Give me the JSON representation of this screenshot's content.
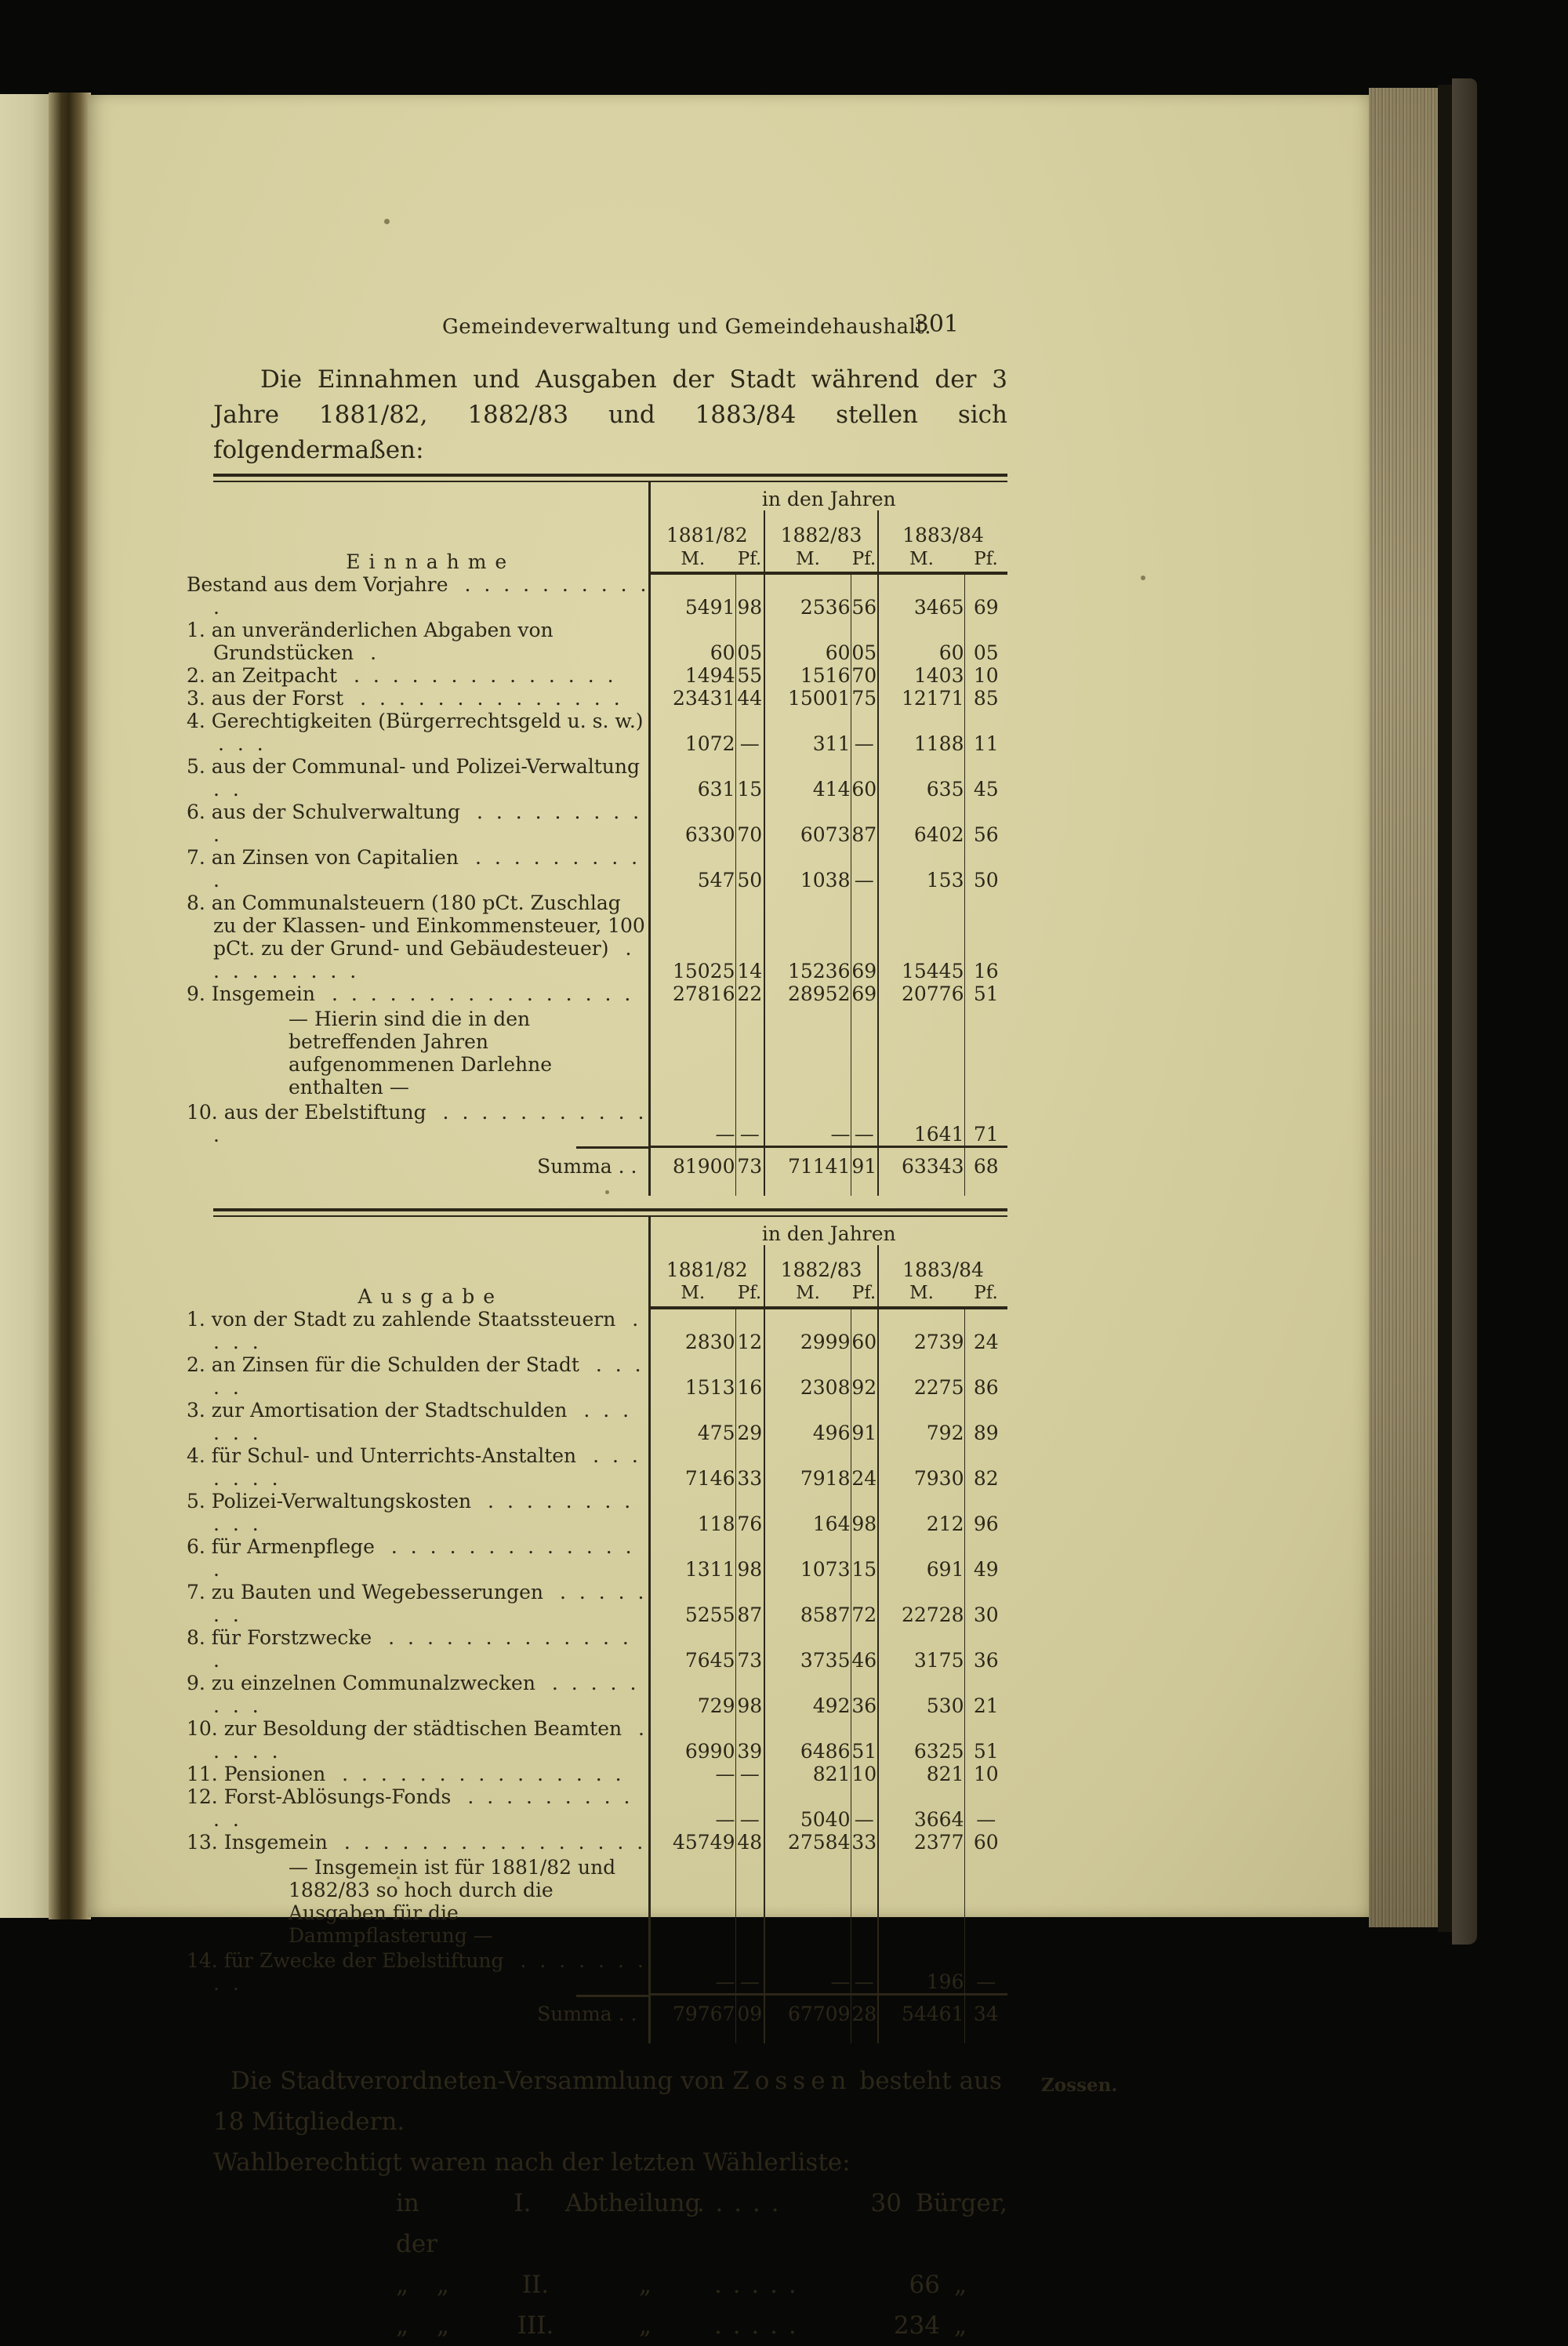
{
  "page": {
    "running_head": "Gemeindeverwaltung und Gemeindehaushalt.",
    "page_number": "301",
    "intro": "Die Einnahmen und Ausgaben der Stadt während der 3 Jahre 1881/82, 1882/83 und 1883/84 stellen sich folgendermaßen:"
  },
  "income_table": {
    "title": "Einnahme",
    "span_header": "in den Jahren",
    "years": [
      "1881/82",
      "1882/83",
      "1883/84"
    ],
    "unit_m": "M.",
    "unit_pf": "Pf.",
    "rows": [
      {
        "label": "Bestand aus dem Vorjahre",
        "dots": ". . . . . . . . . . .",
        "values": [
          "5491",
          "98",
          "2536",
          "56",
          "3465",
          "69"
        ]
      },
      {
        "label": "1. an unveränderlichen Abgaben von Grundstücken",
        "dots": ".",
        "values": [
          "60",
          "05",
          "60",
          "05",
          "60",
          "05"
        ]
      },
      {
        "label": "2. an Zeitpacht",
        "dots": ". . . . . . . . . . . . . .",
        "values": [
          "1494",
          "55",
          "1516",
          "70",
          "1403",
          "10"
        ]
      },
      {
        "label": "3. aus der Forst",
        "dots": ". . . . . . . . . . . . . .",
        "values": [
          "23431",
          "44",
          "15001",
          "75",
          "12171",
          "85"
        ]
      },
      {
        "label": "4. Gerechtigkeiten (Bürgerrechtsgeld u. s. w.)",
        "dots": ". . .",
        "values": [
          "1072",
          "—",
          "311",
          "—",
          "1188",
          "11"
        ]
      },
      {
        "label": "5. aus der Communal- und Polizei-Verwaltung",
        "dots": ". .",
        "values": [
          "631",
          "15",
          "414",
          "60",
          "635",
          "45"
        ]
      },
      {
        "label": "6. aus der Schulverwaltung",
        "dots": ". . . . . . . . . .",
        "values": [
          "6330",
          "70",
          "6073",
          "87",
          "6402",
          "56"
        ]
      },
      {
        "label": "7. an Zinsen von Capitalien",
        "dots": ". . . . . . . . . .",
        "values": [
          "547",
          "50",
          "1038",
          "—",
          "153",
          "50"
        ]
      },
      {
        "label": "8. an Communalsteuern (180 pCt. Zuschlag zu der Klassen- und Einkommensteuer, 100 pCt. zu der Grund- und Gebäudesteuer)",
        "dots": ". . . . . . . . .",
        "values": [
          "15025",
          "14",
          "15236",
          "69",
          "15445",
          "16"
        ]
      },
      {
        "label": "9. Insgemein",
        "dots": ". . . . . . . . . . . . . . . .",
        "values": [
          "27816",
          "22",
          "28952",
          "69",
          "20776",
          "51"
        ]
      },
      {
        "note": "— Hierin sind die in den betreffenden Jahren aufgenommenen Darlehne enthalten —"
      },
      {
        "label": "10. aus der Ebelstiftung",
        "dots": ". . . . . . . . . . . .",
        "values": [
          "—",
          "—",
          "—",
          "—",
          "1641",
          "71"
        ]
      }
    ],
    "summa": {
      "label": "Summa . .",
      "values": [
        "81900",
        "73",
        "71141",
        "91",
        "63343",
        "68"
      ]
    }
  },
  "expense_table": {
    "title": "Ausgabe",
    "span_header": "in den Jahren",
    "years": [
      "1881/82",
      "1882/83",
      "1883/84"
    ],
    "unit_m": "M.",
    "unit_pf": "Pf.",
    "rows": [
      {
        "label": "1. von der Stadt zu zahlende Staatssteuern",
        "dots": ". . . .",
        "values": [
          "2830",
          "12",
          "2999",
          "60",
          "2739",
          "24"
        ]
      },
      {
        "label": "2. an Zinsen für die Schulden der Stadt",
        "dots": ". . . . .",
        "values": [
          "1513",
          "16",
          "2308",
          "92",
          "2275",
          "86"
        ]
      },
      {
        "label": "3. zur Amortisation der Stadtschulden",
        "dots": ". . . . . .",
        "values": [
          "475",
          "29",
          "496",
          "91",
          "792",
          "89"
        ]
      },
      {
        "label": "4. für Schul- und Unterrichts-Anstalten",
        "dots": ". . . . . . .",
        "values": [
          "7146",
          "33",
          "7918",
          "24",
          "7930",
          "82"
        ]
      },
      {
        "label": "5. Polizei-Verwaltungskosten",
        "dots": ". . . . . . . . . . .",
        "values": [
          "118",
          "76",
          "164",
          "98",
          "212",
          "96"
        ]
      },
      {
        "label": "6. für Armenpflege",
        "dots": ". . . . . . . . . . . . . .",
        "values": [
          "1311",
          "98",
          "1073",
          "15",
          "691",
          "49"
        ]
      },
      {
        "label": "7. zu Bauten und Wegebesserungen",
        "dots": ". . . . . . .",
        "values": [
          "5255",
          "87",
          "8587",
          "72",
          "22728",
          "30"
        ]
      },
      {
        "label": "8. für Forstzwecke",
        "dots": ". . . . . . . . . . . . . .",
        "values": [
          "7645",
          "73",
          "3735",
          "46",
          "3175",
          "36"
        ]
      },
      {
        "label": "9. zu einzelnen Communalzwecken",
        "dots": ". . . . . . . .",
        "values": [
          "729",
          "98",
          "492",
          "36",
          "530",
          "21"
        ]
      },
      {
        "label": "10. zur Besoldung der städtischen Beamten",
        "dots": ". . . . .",
        "values": [
          "6990",
          "39",
          "6486",
          "51",
          "6325",
          "51"
        ]
      },
      {
        "label": "11. Pensionen",
        "dots": ". . . . . . . . . . . . . . .",
        "values": [
          "—",
          "—",
          "821",
          "10",
          "821",
          "10"
        ]
      },
      {
        "label": "12. Forst-Ablösungs-Fonds",
        "dots": ". . . . . . . . . . .",
        "values": [
          "—",
          "—",
          "5040",
          "—",
          "3664",
          "—"
        ]
      },
      {
        "label": "13. Insgemein",
        "dots": ". . . . . . . . . . . . . . . .",
        "values": [
          "45749",
          "48",
          "27584",
          "33",
          "2377",
          "60"
        ]
      },
      {
        "note": "— Insgemein ist für 1881/82 und 1882/83 so hoch durch die Ausgaben für die Dammpflasterung —"
      },
      {
        "label": "14. für Zwecke der Ebelstiftung",
        "dots": ". . . . . . . . .",
        "values": [
          "—",
          "—",
          "—",
          "—",
          "196",
          "—"
        ]
      }
    ],
    "summa": {
      "label": "Summa . .",
      "values": [
        "79767",
        "09",
        "67709",
        "28",
        "54461",
        "34"
      ]
    }
  },
  "footer": {
    "line1_before": "Die Stadtverordneten-Versammlung von ",
    "line1_emph": "Zossen",
    "line1_after": " besteht aus 18 Mitgliedern.",
    "margin_note": "Zossen.",
    "line2": "Wahlberechtigt waren nach der letzten Wählerliste:",
    "list": [
      {
        "col1": "in der",
        "col2": "I.",
        "col3": "Abtheilung",
        "dots": ". . . . .",
        "num": "30",
        "unit": "Bürger,"
      },
      {
        "col1": "„ „",
        "col2": "II.",
        "col3": "„",
        "dots": ". . . . .",
        "num": "66",
        "unit": "„"
      },
      {
        "col1": "„ „",
        "col2": "III.",
        "col3": "„",
        "dots": ". . . . .",
        "num": "234",
        "unit": "„"
      }
    ]
  }
}
